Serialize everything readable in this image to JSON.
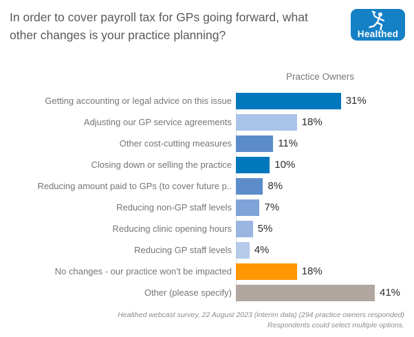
{
  "header": {
    "title": "In order to cover payroll tax for GPs going forward, what other changes is your practice planning?",
    "logo_text": "Healthed",
    "logo_bg_color": "#1480C6"
  },
  "chart_data": {
    "type": "bar",
    "orientation": "horizontal",
    "column_header": "Practice Owners",
    "categories": [
      "Getting accounting or legal advice on this issue",
      "Adjusting our GP service agreements",
      "Other cost-cutting measures",
      "Closing down or selling the practice",
      "Reducing amount paid to GPs (to cover future p..",
      "Reducing non-GP staff levels",
      "Reducing clinic opening hours",
      "Reducing GP staff levels",
      "No changes - our practice won’t be impacted",
      "Other (please specify)"
    ],
    "values": [
      31,
      18,
      11,
      10,
      8,
      7,
      5,
      4,
      18,
      41
    ],
    "value_labels": [
      "31%",
      "18%",
      "11%",
      "10%",
      "8%",
      "7%",
      "5%",
      "4%",
      "18%",
      "41%"
    ],
    "colors": [
      "#0077BC",
      "#AAC3E9",
      "#5D8CCB",
      "#0077BC",
      "#5D8CCB",
      "#7FA3D8",
      "#9AB5DF",
      "#B6CAEA",
      "#FF9602",
      "#B1A7A0"
    ],
    "xlim": [
      0,
      41
    ],
    "grid": false,
    "legend": "none"
  },
  "footer": {
    "line1": "Healthed webcast survey, 22 August 2023 (interim data) (294 practice owners responded)",
    "line2": "Respondents could select multiple options."
  }
}
